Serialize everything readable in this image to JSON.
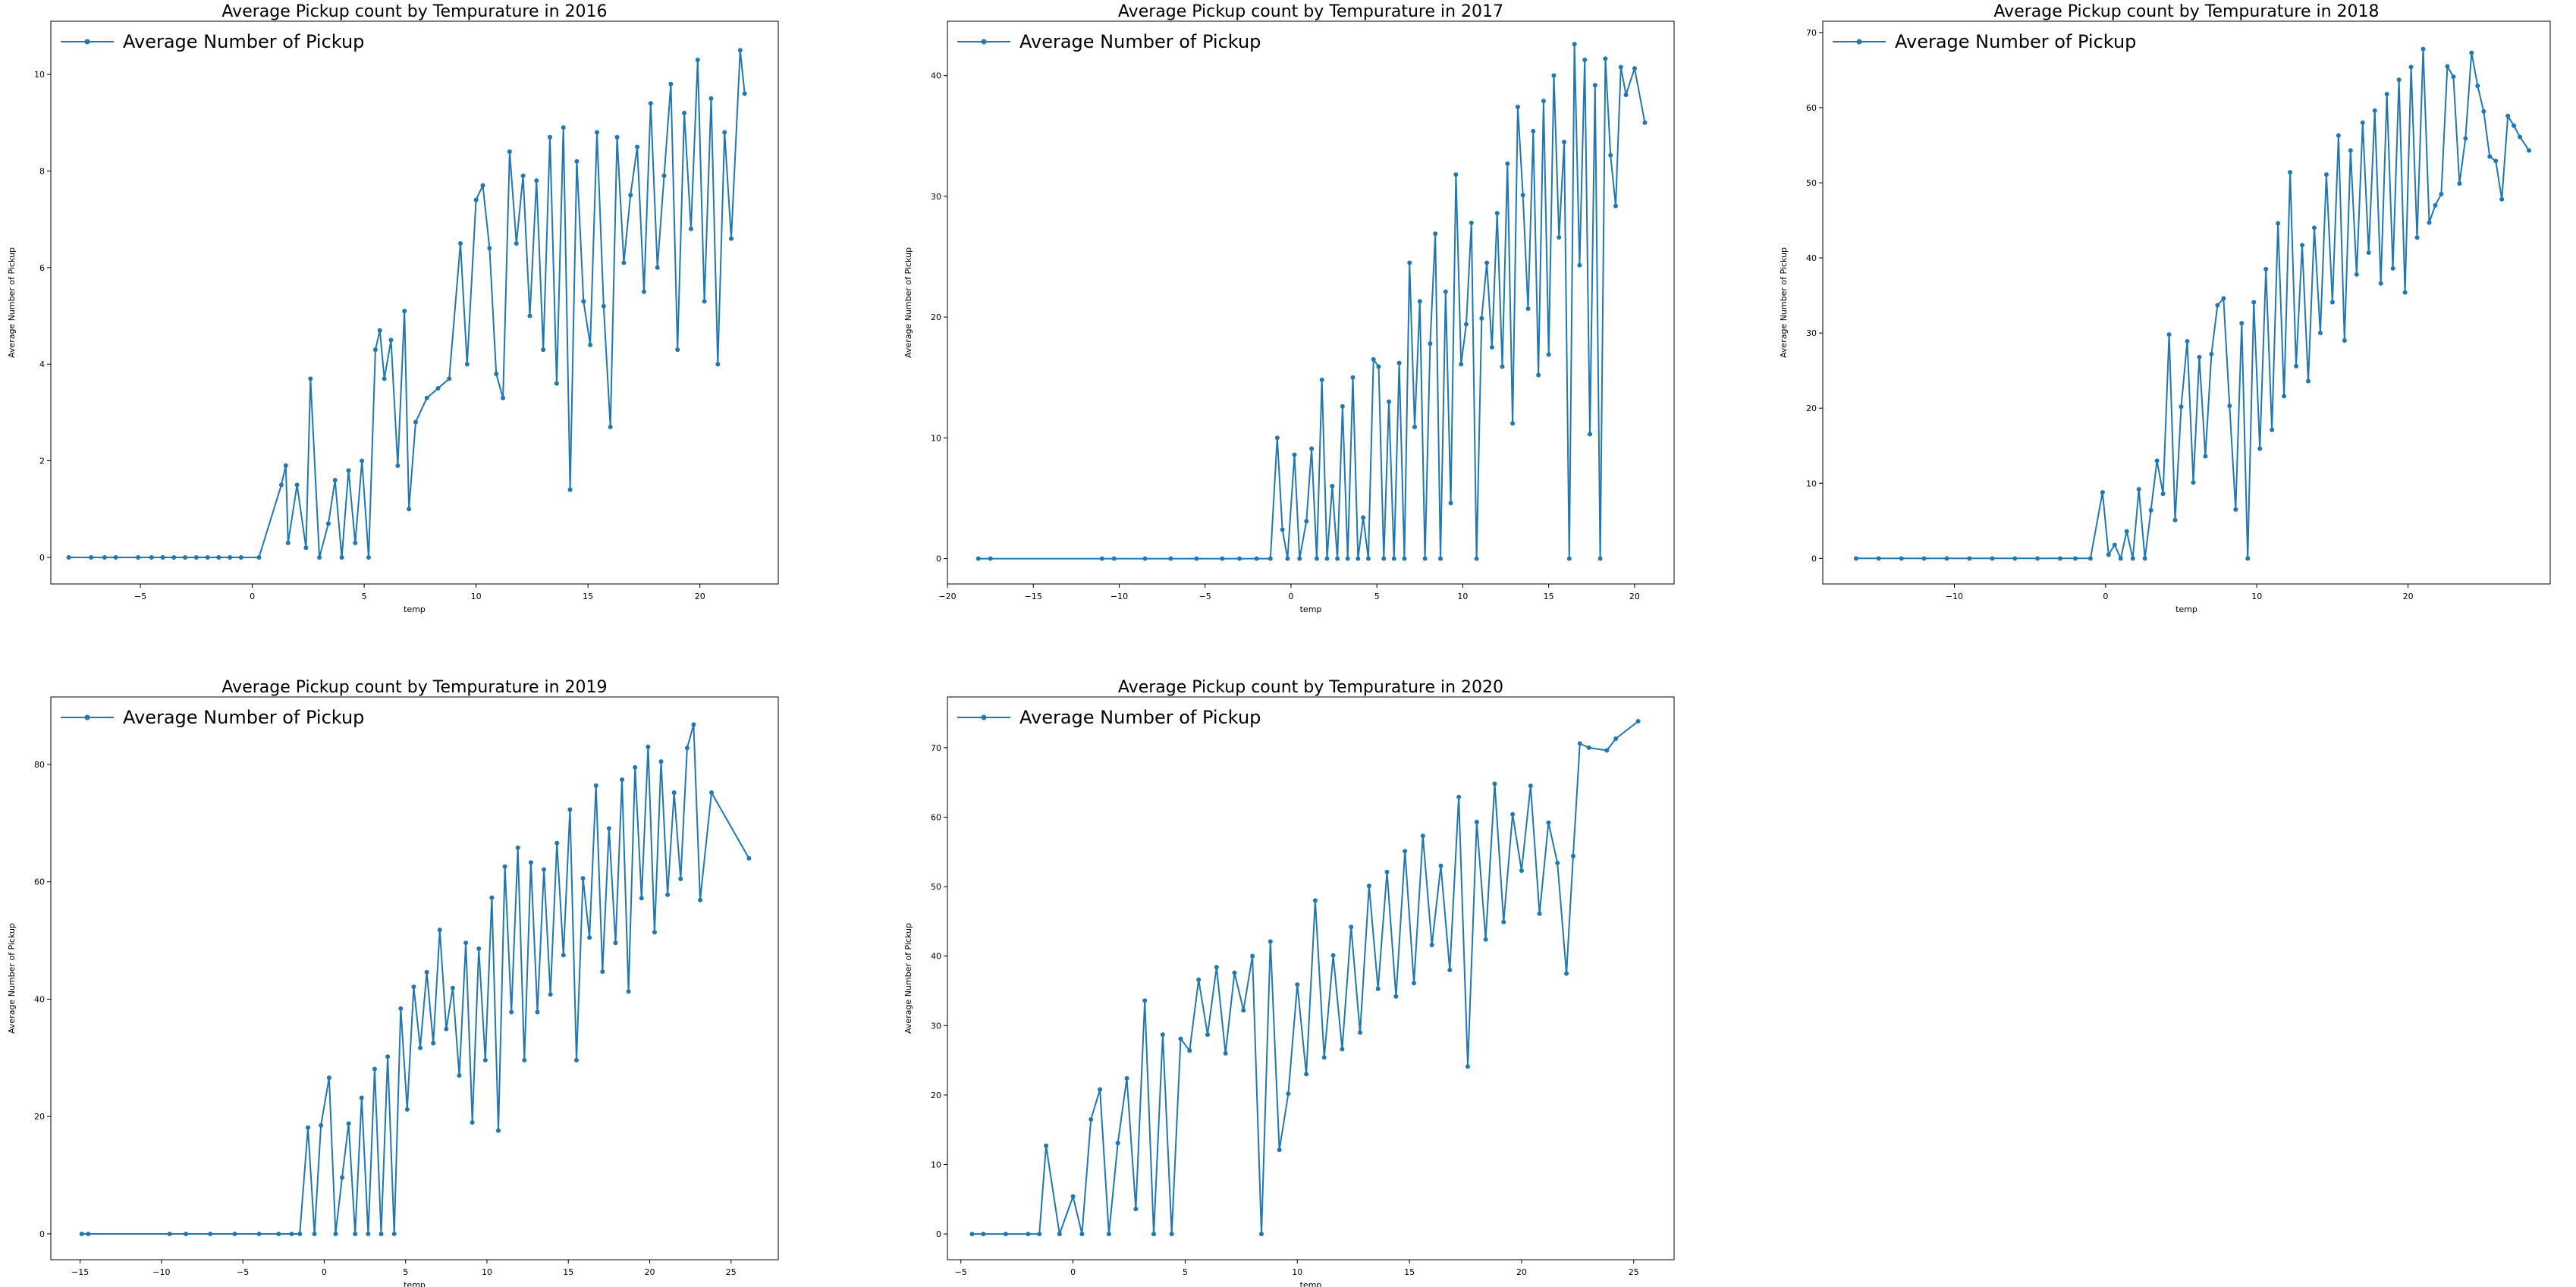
{
  "chart_data": [
    {
      "type": "line",
      "title": "Average Pickup count by Tempurature in 2016",
      "xlabel": "temp",
      "ylabel": "Average Number of Pickup",
      "legend": {
        "label": "Average Number of Pickup",
        "placement": "top-left"
      },
      "xlim": [
        -9,
        23.5
      ],
      "ylim": [
        -0.55,
        11.1
      ],
      "xticks": [
        -5,
        0,
        5,
        10,
        15,
        20
      ],
      "yticks": [
        0,
        2,
        4,
        6,
        8,
        10
      ],
      "color": "#1f77b4",
      "marker": "circle",
      "series": [
        {
          "x": [
            -8.2,
            -7.2,
            -6.6,
            -6.1,
            -5.1,
            -4.5,
            -4.0,
            -3.5,
            -3.0,
            -2.5,
            -2.0,
            -1.5,
            -1.0,
            -0.5,
            0.3,
            1.3,
            1.5,
            1.6,
            2.0,
            2.4,
            2.6,
            3.0,
            3.4,
            3.7,
            4.0,
            4.3,
            4.6,
            4.9,
            5.2,
            5.5,
            5.7,
            5.9,
            6.2,
            6.5,
            6.8,
            7.0,
            7.3,
            7.8,
            8.3,
            8.8,
            9.3,
            9.6,
            10.0,
            10.3,
            10.6,
            10.9,
            11.2,
            11.5,
            11.8,
            12.1,
            12.4,
            12.7,
            13.0,
            13.3,
            13.6,
            13.9,
            14.2,
            14.5,
            14.8,
            15.1,
            15.4,
            15.7,
            16.0,
            16.3,
            16.6,
            16.9,
            17.2,
            17.5,
            17.8,
            18.1,
            18.4,
            18.7,
            19.0,
            19.3,
            19.6,
            19.9,
            20.2,
            20.5,
            20.8,
            21.1,
            21.4,
            21.8,
            22.0
          ],
          "y": [
            0,
            0,
            0,
            0,
            0,
            0,
            0,
            0,
            0,
            0,
            0,
            0,
            0,
            0,
            0,
            1.5,
            1.9,
            0.3,
            1.5,
            0.2,
            3.7,
            0,
            0.7,
            1.6,
            0,
            1.8,
            0.3,
            2.0,
            0,
            4.3,
            4.7,
            3.7,
            4.5,
            1.9,
            5.1,
            1.0,
            2.8,
            3.3,
            3.5,
            3.7,
            6.5,
            4.0,
            7.4,
            7.7,
            6.4,
            3.8,
            3.3,
            8.4,
            6.5,
            7.9,
            5.0,
            7.8,
            4.3,
            8.7,
            3.6,
            8.9,
            1.4,
            8.2,
            5.3,
            4.4,
            8.8,
            5.2,
            2.7,
            8.7,
            6.1,
            7.5,
            8.5,
            5.5,
            9.4,
            6.0,
            7.9,
            9.8,
            4.3,
            9.2,
            6.8,
            10.3,
            5.3,
            9.5,
            4.0,
            8.8,
            6.6,
            10.5,
            9.6
          ]
        }
      ]
    },
    {
      "type": "line",
      "title": "Average Pickup count by Tempurature in 2017",
      "xlabel": "temp",
      "ylabel": "Average Number of Pickup",
      "legend": {
        "label": "Average Number of Pickup",
        "placement": "top-left"
      },
      "xlim": [
        -20,
        22.3
      ],
      "ylim": [
        -2.1,
        44.5
      ],
      "xticks": [
        -20,
        -15,
        -10,
        -5,
        0,
        5,
        10,
        15,
        20
      ],
      "yticks": [
        0,
        10,
        20,
        30,
        40
      ],
      "color": "#1f77b4",
      "marker": "circle",
      "series": [
        {
          "x": [
            -18.2,
            -17.5,
            -11.0,
            -10.3,
            -8.5,
            -7.0,
            -5.5,
            -4.0,
            -3.0,
            -2.0,
            -1.2,
            -0.8,
            -0.5,
            -0.2,
            0.2,
            0.5,
            0.9,
            1.2,
            1.5,
            1.8,
            2.1,
            2.4,
            2.7,
            3.0,
            3.3,
            3.6,
            3.9,
            4.2,
            4.5,
            4.8,
            5.1,
            5.4,
            5.7,
            6.0,
            6.3,
            6.6,
            6.9,
            7.2,
            7.5,
            7.8,
            8.1,
            8.4,
            8.7,
            9.0,
            9.3,
            9.6,
            9.9,
            10.2,
            10.5,
            10.8,
            11.1,
            11.4,
            11.7,
            12.0,
            12.3,
            12.6,
            12.9,
            13.2,
            13.5,
            13.8,
            14.1,
            14.4,
            14.7,
            15.0,
            15.3,
            15.6,
            15.9,
            16.2,
            16.5,
            16.8,
            17.1,
            17.4,
            17.7,
            18.0,
            18.3,
            18.6,
            18.9,
            19.2,
            19.5,
            20.0,
            20.6
          ],
          "y": [
            0,
            0,
            0,
            0,
            0,
            0,
            0,
            0,
            0,
            0,
            0,
            10.0,
            2.4,
            0,
            8.6,
            0,
            3.1,
            9.1,
            0,
            14.8,
            0,
            6.0,
            0,
            12.6,
            0,
            15.0,
            0,
            3.4,
            0,
            16.5,
            15.9,
            0,
            13.0,
            0,
            16.2,
            0,
            24.5,
            10.9,
            21.3,
            0,
            17.8,
            26.9,
            0,
            22.1,
            4.6,
            31.8,
            16.1,
            19.4,
            27.8,
            0,
            19.9,
            24.5,
            17.5,
            28.6,
            15.9,
            32.7,
            11.2,
            37.4,
            30.1,
            20.7,
            35.4,
            15.2,
            37.9,
            16.9,
            40.0,
            26.6,
            34.5,
            0,
            42.6,
            24.3,
            41.3,
            10.3,
            39.2,
            0,
            41.4,
            33.4,
            29.2,
            40.7,
            38.4,
            40.6,
            36.1
          ]
        }
      ]
    },
    {
      "type": "line",
      "title": "Average Pickup count by Tempurature in 2018",
      "xlabel": "temp",
      "ylabel": "Average Number of Pickup",
      "legend": {
        "label": "Average Number of Pickup",
        "placement": "top-left"
      },
      "xlim": [
        -18.7,
        29.4
      ],
      "ylim": [
        -3.4,
        71.5
      ],
      "xticks": [
        -10,
        0,
        10,
        20
      ],
      "yticks": [
        0,
        10,
        20,
        30,
        40,
        50,
        60,
        70
      ],
      "color": "#1f77b4",
      "marker": "circle",
      "series": [
        {
          "x": [
            -16.5,
            -15.0,
            -13.5,
            -12.0,
            -10.5,
            -9.0,
            -7.5,
            -6.0,
            -4.5,
            -3.0,
            -2.0,
            -1.0,
            -0.2,
            0.2,
            0.6,
            1.0,
            1.4,
            1.8,
            2.2,
            2.6,
            3.0,
            3.4,
            3.8,
            4.2,
            4.6,
            5.0,
            5.4,
            5.8,
            6.2,
            6.6,
            7.0,
            7.4,
            7.8,
            8.2,
            8.6,
            9.0,
            9.4,
            9.8,
            10.2,
            10.6,
            11.0,
            11.4,
            11.8,
            12.2,
            12.6,
            13.0,
            13.4,
            13.8,
            14.2,
            14.6,
            15.0,
            15.4,
            15.8,
            16.2,
            16.6,
            17.0,
            17.4,
            17.8,
            18.2,
            18.6,
            19.0,
            19.4,
            19.8,
            20.2,
            20.6,
            21.0,
            21.4,
            21.8,
            22.2,
            22.6,
            23.0,
            23.4,
            23.8,
            24.2,
            24.6,
            25.0,
            25.4,
            25.8,
            26.2,
            26.6,
            27.0,
            27.4,
            28.0
          ],
          "y": [
            0,
            0,
            0,
            0,
            0,
            0,
            0,
            0,
            0,
            0,
            0,
            0,
            8.8,
            0.5,
            1.8,
            0,
            3.6,
            0,
            9.2,
            0,
            6.4,
            13.0,
            8.6,
            29.8,
            5.1,
            20.2,
            28.9,
            10.1,
            26.8,
            13.6,
            27.2,
            33.7,
            34.6,
            20.3,
            6.5,
            31.3,
            0,
            34.1,
            14.6,
            38.5,
            17.1,
            44.6,
            21.6,
            51.4,
            25.6,
            41.7,
            23.6,
            44.0,
            30.0,
            51.1,
            34.1,
            56.3,
            29.0,
            54.3,
            37.8,
            58.0,
            40.7,
            59.6,
            36.6,
            61.8,
            38.6,
            63.7,
            35.4,
            65.4,
            42.7,
            67.8,
            44.7,
            47.0,
            48.5,
            65.5,
            64.1,
            49.9,
            55.9,
            67.3,
            62.9,
            59.5,
            53.5,
            52.9,
            47.8,
            58.9,
            57.6,
            56.1,
            54.3
          ]
        }
      ]
    },
    {
      "type": "line",
      "title": "Average Pickup count by Tempurature in 2019",
      "xlabel": "temp",
      "ylabel": "Average Number of Pickup",
      "legend": {
        "label": "Average Number of Pickup",
        "placement": "top-left"
      },
      "xlim": [
        -16.8,
        27.9
      ],
      "ylim": [
        -4.4,
        91.5
      ],
      "xticks": [
        -15,
        -10,
        -5,
        0,
        5,
        10,
        15,
        20,
        25
      ],
      "yticks": [
        0,
        20,
        40,
        60,
        80
      ],
      "color": "#1f77b4",
      "marker": "circle",
      "series": [
        {
          "x": [
            -14.9,
            -14.5,
            -9.5,
            -8.5,
            -7.0,
            -5.5,
            -4.0,
            -2.8,
            -2.0,
            -1.5,
            -1.0,
            -0.6,
            -0.2,
            0.3,
            0.7,
            1.1,
            1.5,
            1.9,
            2.3,
            2.7,
            3.1,
            3.5,
            3.9,
            4.3,
            4.7,
            5.1,
            5.5,
            5.9,
            6.3,
            6.7,
            7.1,
            7.5,
            7.9,
            8.3,
            8.7,
            9.1,
            9.5,
            9.9,
            10.3,
            10.7,
            11.1,
            11.5,
            11.9,
            12.3,
            12.7,
            13.1,
            13.5,
            13.9,
            14.3,
            14.7,
            15.1,
            15.5,
            15.9,
            16.3,
            16.7,
            17.1,
            17.5,
            17.9,
            18.3,
            18.7,
            19.1,
            19.5,
            19.9,
            20.3,
            20.7,
            21.1,
            21.5,
            21.9,
            22.3,
            22.7,
            23.1,
            23.8,
            26.1
          ],
          "y": [
            0,
            0,
            0,
            0,
            0,
            0,
            0,
            0,
            0,
            0,
            18.1,
            0,
            18.5,
            26.6,
            0,
            9.6,
            18.8,
            0,
            23.2,
            0,
            28.1,
            0,
            30.2,
            0,
            38.4,
            21.2,
            42.1,
            31.7,
            44.6,
            32.5,
            51.8,
            34.9,
            41.9,
            27.0,
            49.6,
            19.0,
            48.6,
            29.6,
            57.3,
            17.6,
            62.6,
            37.8,
            65.8,
            29.6,
            63.3,
            37.8,
            62.1,
            40.8,
            66.6,
            47.5,
            72.3,
            29.6,
            60.6,
            50.5,
            76.4,
            44.7,
            69.1,
            49.6,
            77.4,
            41.3,
            79.5,
            57.2,
            83.0,
            51.4,
            80.5,
            57.8,
            75.2,
            60.5,
            82.8,
            86.8,
            56.9,
            75.2,
            64.0
          ]
        }
      ]
    },
    {
      "type": "line",
      "title": "Average Pickup count by Tempurature in 2020",
      "xlabel": "temp",
      "ylabel": "Average Number of Pickup",
      "legend": {
        "label": "Average Number of Pickup",
        "placement": "top-left"
      },
      "xlim": [
        -5.6,
        26.8
      ],
      "ylim": [
        -3.7,
        77.3
      ],
      "xticks": [
        -5,
        0,
        5,
        10,
        15,
        20,
        25
      ],
      "yticks": [
        0,
        10,
        20,
        30,
        40,
        50,
        60,
        70
      ],
      "color": "#1f77b4",
      "marker": "circle",
      "series": [
        {
          "x": [
            -4.5,
            -4.0,
            -3.0,
            -2.0,
            -1.5,
            -1.2,
            -0.6,
            0.0,
            0.4,
            0.8,
            1.2,
            1.6,
            2.0,
            2.4,
            2.8,
            3.2,
            3.6,
            4.0,
            4.4,
            4.8,
            5.2,
            5.6,
            6.0,
            6.4,
            6.8,
            7.2,
            7.6,
            8.0,
            8.4,
            8.8,
            9.2,
            9.6,
            10.0,
            10.4,
            10.8,
            11.2,
            11.6,
            12.0,
            12.4,
            12.8,
            13.2,
            13.6,
            14.0,
            14.4,
            14.8,
            15.2,
            15.6,
            16.0,
            16.4,
            16.8,
            17.2,
            17.6,
            18.0,
            18.4,
            18.8,
            19.2,
            19.6,
            20.0,
            20.4,
            20.8,
            21.2,
            21.6,
            22.0,
            22.3,
            22.6,
            23.0,
            23.8,
            24.2,
            25.2
          ],
          "y": [
            0,
            0,
            0,
            0,
            0,
            12.7,
            0,
            5.4,
            0,
            16.5,
            20.8,
            0,
            13.1,
            22.4,
            3.6,
            33.6,
            0,
            28.7,
            0,
            28.1,
            26.4,
            36.6,
            28.7,
            38.4,
            26.0,
            37.6,
            32.2,
            40.0,
            0,
            42.1,
            12.1,
            20.2,
            35.9,
            23.0,
            48.0,
            25.4,
            40.1,
            26.6,
            44.2,
            29.0,
            50.1,
            35.3,
            52.1,
            34.2,
            55.1,
            36.1,
            57.3,
            41.6,
            53.0,
            38.0,
            62.9,
            24.1,
            59.3,
            42.4,
            64.8,
            44.9,
            60.4,
            52.3,
            64.5,
            46.1,
            59.2,
            53.4,
            37.5,
            54.4,
            70.6,
            70.0,
            69.6,
            71.3,
            73.8
          ]
        }
      ]
    }
  ]
}
